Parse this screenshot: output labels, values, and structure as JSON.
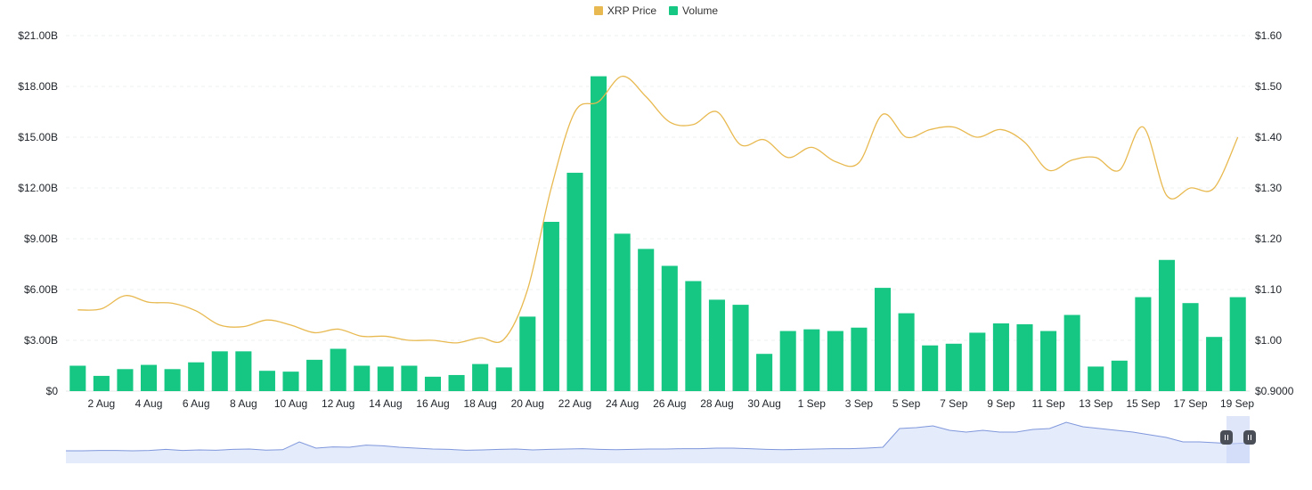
{
  "chart_data": {
    "type": "bar",
    "legend": {
      "position": "top-center",
      "entries": [
        {
          "label": "XRP Price",
          "color": "#e8b950"
        },
        {
          "label": "Volume",
          "color": "#16c784"
        }
      ]
    },
    "grid": true,
    "x_tick_labels": [
      "2 Aug",
      "4 Aug",
      "6 Aug",
      "8 Aug",
      "10 Aug",
      "12 Aug",
      "14 Aug",
      "16 Aug",
      "18 Aug",
      "20 Aug",
      "22 Aug",
      "24 Aug",
      "26 Aug",
      "28 Aug",
      "30 Aug",
      "1 Sep",
      "3 Sep",
      "5 Sep",
      "7 Sep",
      "9 Sep",
      "11 Sep",
      "13 Sep",
      "15 Sep",
      "17 Sep",
      "19 Sep"
    ],
    "y_left": {
      "ticks": [
        "$0",
        "$3.00B",
        "$6.00B",
        "$9.00B",
        "$12.00B",
        "$15.00B",
        "$18.00B",
        "$21.00B"
      ],
      "range": [
        0,
        21
      ]
    },
    "y_right": {
      "ticks": [
        "$0.9000",
        "$1.00",
        "$1.10",
        "$1.20",
        "$1.30",
        "$1.40",
        "$1.50",
        "$1.60"
      ],
      "range": [
        0.9,
        1.6
      ]
    },
    "volume_series": {
      "name": "Volume",
      "unit": "billion USD",
      "values": [
        1.5,
        0.9,
        1.3,
        1.55,
        1.3,
        1.7,
        2.35,
        2.35,
        1.2,
        1.15,
        1.85,
        2.5,
        1.5,
        1.45,
        1.5,
        0.85,
        0.95,
        1.6,
        1.4,
        4.4,
        10.0,
        12.9,
        18.6,
        9.3,
        8.4,
        7.4,
        6.5,
        5.4,
        5.1,
        2.2,
        3.55,
        3.65,
        3.55,
        3.75,
        6.1,
        4.6,
        2.7,
        2.8,
        3.45,
        4.0,
        3.95,
        3.55,
        4.5,
        1.45,
        1.8,
        5.55,
        7.75,
        5.2,
        3.2,
        5.55
      ]
    },
    "price_series": {
      "name": "XRP Price",
      "unit": "USD",
      "values": [
        1.06,
        1.062,
        1.088,
        1.075,
        1.073,
        1.058,
        1.03,
        1.027,
        1.04,
        1.03,
        1.015,
        1.022,
        1.008,
        1.008,
        1.0,
        1.0,
        0.995,
        1.005,
        1.002,
        1.1,
        1.3,
        1.45,
        1.47,
        1.52,
        1.48,
        1.43,
        1.425,
        1.45,
        1.385,
        1.395,
        1.36,
        1.38,
        1.352,
        1.35,
        1.445,
        1.4,
        1.415,
        1.42,
        1.4,
        1.415,
        1.39,
        1.335,
        1.355,
        1.36,
        1.335,
        1.42,
        1.285,
        1.3,
        1.3,
        1.4
      ]
    },
    "navigator": {
      "values": [
        0.3,
        0.3,
        0.32,
        0.32,
        0.3,
        0.32,
        0.38,
        0.32,
        0.35,
        0.33,
        0.38,
        0.4,
        0.34,
        0.36,
        0.8,
        0.45,
        0.52,
        0.5,
        0.62,
        0.58,
        0.5,
        0.45,
        0.4,
        0.38,
        0.33,
        0.35,
        0.38,
        0.4,
        0.35,
        0.38,
        0.4,
        0.42,
        0.38,
        0.36,
        0.38,
        0.4,
        0.4,
        0.42,
        0.42,
        0.45,
        0.45,
        0.42,
        0.38,
        0.36,
        0.38,
        0.4,
        0.42,
        0.42,
        0.45,
        0.5,
        1.55,
        1.6,
        1.7,
        1.45,
        1.35,
        1.45,
        1.35,
        1.35,
        1.5,
        1.55,
        1.9,
        1.65,
        1.55,
        1.45,
        1.35,
        1.2,
        1.05,
        0.8,
        0.8,
        0.75,
        0.7,
        0.75
      ]
    }
  }
}
